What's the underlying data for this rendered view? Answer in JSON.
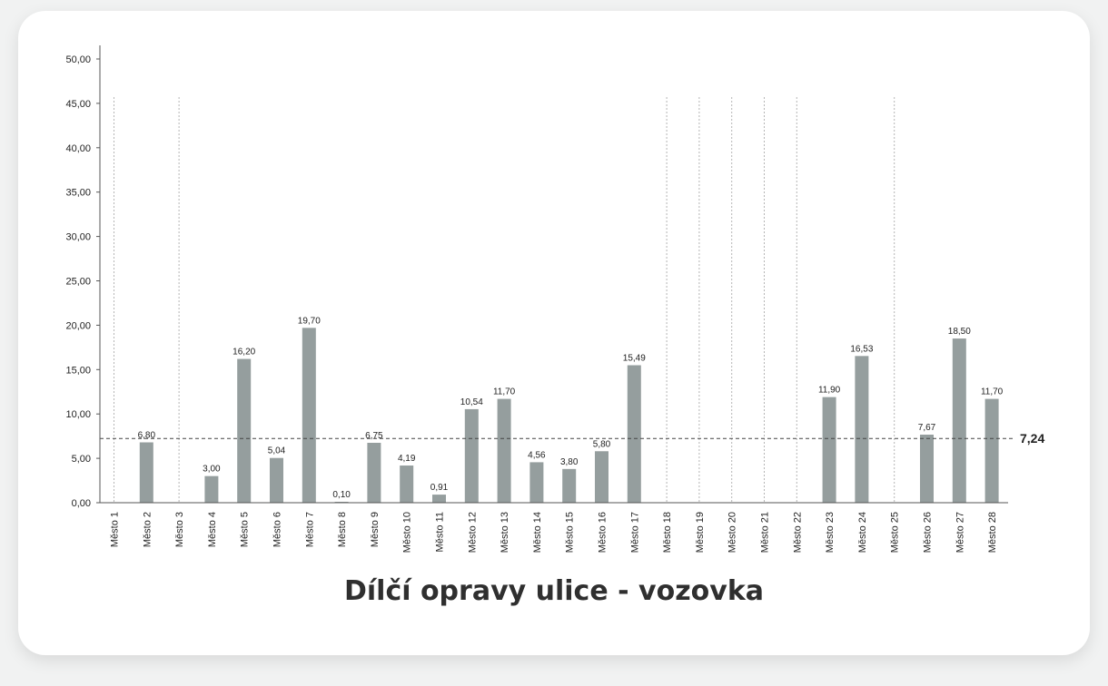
{
  "chart_data": {
    "type": "bar",
    "title": "Dílčí opravy ulice - vozovka",
    "categories": [
      "Město 1",
      "Město 2",
      "Město 3",
      "Město 4",
      "Město 5",
      "Město 6",
      "Město 7",
      "Město 8",
      "Město 9",
      "Město 10",
      "Město 11",
      "Město 12",
      "Město 13",
      "Město 14",
      "Město 15",
      "Město 16",
      "Město 17",
      "Město 18",
      "Město 19",
      "Město 20",
      "Město 21",
      "Město 22",
      "Město 23",
      "Město 24",
      "Město 25",
      "Město 26",
      "Město 27",
      "Město 28"
    ],
    "values": [
      null,
      6.8,
      null,
      3.0,
      16.2,
      5.04,
      19.7,
      0.1,
      6.75,
      4.19,
      0.91,
      10.54,
      11.7,
      4.56,
      3.8,
      5.8,
      15.49,
      null,
      null,
      null,
      null,
      null,
      11.9,
      16.53,
      null,
      7.67,
      18.5,
      11.7
    ],
    "value_labels": [
      null,
      "6,80",
      null,
      "3,00",
      "16,20",
      "5,04",
      "19,70",
      "0,10",
      "6,75",
      "4,19",
      "0,91",
      "10,54",
      "11,70",
      "4,56",
      "3,80",
      "5,80",
      "15,49",
      null,
      null,
      null,
      null,
      null,
      "11,90",
      "16,53",
      null,
      "7,67",
      "18,50",
      "11,70"
    ],
    "y_ticks": [
      "0,00",
      "5,00",
      "10,00",
      "15,00",
      "20,00",
      "25,00",
      "30,00",
      "35,00",
      "40,00",
      "45,00",
      "50,00"
    ],
    "ylim": [
      0,
      50
    ],
    "average_line": {
      "value": 7.24,
      "label": "7,24"
    },
    "xlabel": "",
    "ylabel": "",
    "bar_color": "#959e9e",
    "grid": false
  }
}
